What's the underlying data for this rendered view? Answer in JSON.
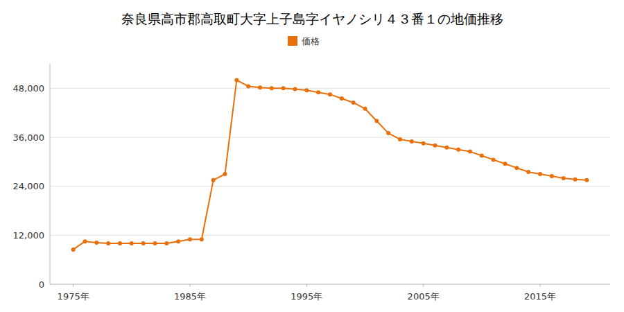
{
  "chart_data": {
    "type": "line",
    "title": "奈良県高市郡高取町大字上子島字イヤノシリ４３番１の地価推移",
    "x": [
      1975,
      1976,
      1977,
      1978,
      1979,
      1980,
      1981,
      1982,
      1983,
      1984,
      1985,
      1986,
      1987,
      1988,
      1989,
      1990,
      1991,
      1992,
      1993,
      1994,
      1995,
      1996,
      1997,
      1998,
      1999,
      2000,
      2001,
      2002,
      2003,
      2004,
      2005,
      2006,
      2007,
      2008,
      2009,
      2010,
      2011,
      2012,
      2013,
      2014,
      2015,
      2016,
      2017,
      2018,
      2019
    ],
    "series": [
      {
        "name": "価格",
        "color": "#E8700A",
        "marker": "circle",
        "values": [
          8500,
          10500,
          10200,
          10000,
          10000,
          10000,
          10000,
          10000,
          10000,
          10500,
          11000,
          11000,
          25500,
          27000,
          50000,
          48500,
          48200,
          48000,
          48000,
          47800,
          47500,
          47000,
          46500,
          45500,
          44500,
          43000,
          40000,
          37000,
          35500,
          35000,
          34500,
          34000,
          33500,
          33000,
          32500,
          31500,
          30500,
          29500,
          28500,
          27500,
          27000,
          26500,
          26000,
          25700,
          25500
        ]
      }
    ],
    "xlim": [
      1973,
      2021
    ],
    "xticks": [
      {
        "value": 1975,
        "label": "1975年"
      },
      {
        "value": 1985,
        "label": "1985年"
      },
      {
        "value": 1995,
        "label": "1995年"
      },
      {
        "value": 2005,
        "label": "2005年"
      },
      {
        "value": 2015,
        "label": "2015年"
      }
    ],
    "ylim": [
      0,
      54000
    ],
    "yticks": [
      0,
      {
        "value": 12000,
        "label": "12,000"
      },
      {
        "value": 24000,
        "label": "24,000"
      },
      {
        "value": 36000,
        "label": "36,000"
      },
      {
        "value": 48000,
        "label": "48,000"
      }
    ],
    "grid": true,
    "legend": "top"
  }
}
